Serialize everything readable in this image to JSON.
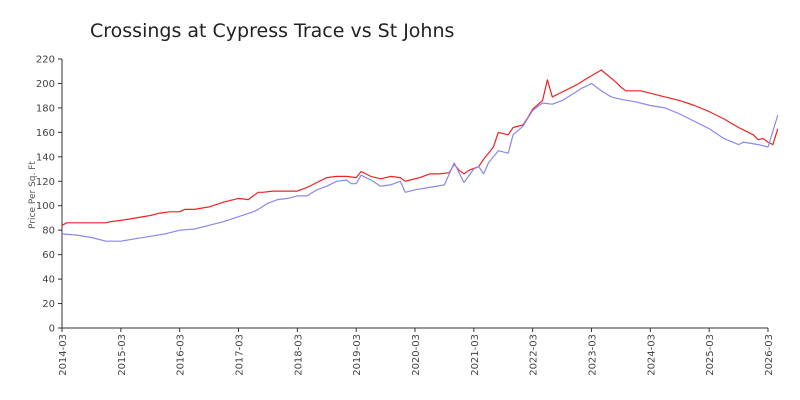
{
  "chart_data": {
    "type": "line",
    "title": "Crossings at Cypress Trace vs St  Johns",
    "ylabel": "Price Per Sq. Ft",
    "xlabel": "",
    "ylim": [
      0,
      220
    ],
    "yticks": [
      "0",
      "20",
      "40",
      "60",
      "80",
      "100",
      "120",
      "140",
      "160",
      "180",
      "200",
      "220"
    ],
    "xticks": [
      "2014-03",
      "2015-03",
      "2016-03",
      "2017-03",
      "2018-03",
      "2019-03",
      "2020-03",
      "2021-03",
      "2022-03",
      "2023-03",
      "2024-03",
      "2025-03",
      "2026-03"
    ],
    "grid": false,
    "series": [
      {
        "color": "#ee2222",
        "points": [
          [
            "2014-03",
            84
          ],
          [
            "2014-04",
            86
          ],
          [
            "2014-06",
            86
          ],
          [
            "2014-09",
            86
          ],
          [
            "2014-12",
            86
          ],
          [
            "2015-01",
            87
          ],
          [
            "2015-03",
            88
          ],
          [
            "2015-06",
            90
          ],
          [
            "2015-09",
            92
          ],
          [
            "2015-11",
            94
          ],
          [
            "2016-01",
            95
          ],
          [
            "2016-03",
            95
          ],
          [
            "2016-04",
            97
          ],
          [
            "2016-06",
            97
          ],
          [
            "2016-09",
            99
          ],
          [
            "2016-12",
            103
          ],
          [
            "2017-03",
            106
          ],
          [
            "2017-05",
            105
          ],
          [
            "2017-06",
            108
          ],
          [
            "2017-07",
            111
          ],
          [
            "2017-08",
            111
          ],
          [
            "2017-10",
            112
          ],
          [
            "2017-12",
            112
          ],
          [
            "2018-03",
            112
          ],
          [
            "2018-05",
            115
          ],
          [
            "2018-07",
            119
          ],
          [
            "2018-09",
            123
          ],
          [
            "2018-11",
            124
          ],
          [
            "2019-01",
            124
          ],
          [
            "2019-03",
            123
          ],
          [
            "2019-04",
            128
          ],
          [
            "2019-06",
            124
          ],
          [
            "2019-08",
            122
          ],
          [
            "2019-10",
            124
          ],
          [
            "2019-12",
            123
          ],
          [
            "2020-01",
            120
          ],
          [
            "2020-02",
            121
          ],
          [
            "2020-04",
            123
          ],
          [
            "2020-06",
            126
          ],
          [
            "2020-08",
            126
          ],
          [
            "2020-10",
            127
          ],
          [
            "2020-11",
            134
          ],
          [
            "2020-12",
            129
          ],
          [
            "2021-01",
            126
          ],
          [
            "2021-02",
            129
          ],
          [
            "2021-04",
            132
          ],
          [
            "2021-05",
            138
          ],
          [
            "2021-06",
            143
          ],
          [
            "2021-07",
            148
          ],
          [
            "2021-08",
            160
          ],
          [
            "2021-10",
            158
          ],
          [
            "2021-11",
            164
          ],
          [
            "2022-01",
            166
          ],
          [
            "2022-02",
            172
          ],
          [
            "2022-03",
            179
          ],
          [
            "2022-05",
            186
          ],
          [
            "2022-06",
            203
          ],
          [
            "2022-07",
            189
          ],
          [
            "2022-08",
            191
          ],
          [
            "2022-10",
            195
          ],
          [
            "2022-12",
            199
          ],
          [
            "2023-02",
            204
          ],
          [
            "2023-05",
            211
          ],
          [
            "2023-08",
            201
          ],
          [
            "2023-09",
            197
          ],
          [
            "2023-10",
            194
          ],
          [
            "2024-01",
            194
          ],
          [
            "2024-03",
            192
          ],
          [
            "2024-06",
            189
          ],
          [
            "2024-09",
            186
          ],
          [
            "2024-12",
            182
          ],
          [
            "2025-03",
            177
          ],
          [
            "2025-06",
            171
          ],
          [
            "2025-09",
            164
          ],
          [
            "2025-12",
            158
          ],
          [
            "2026-01",
            154
          ],
          [
            "2026-02",
            155
          ],
          [
            "2026-03",
            152
          ],
          [
            "2026-04",
            150
          ],
          [
            "2026-05",
            163
          ]
        ]
      },
      {
        "color": "#8888ee",
        "points": [
          [
            "2014-03",
            77
          ],
          [
            "2014-06",
            76
          ],
          [
            "2014-09",
            74
          ],
          [
            "2014-12",
            71
          ],
          [
            "2015-03",
            71
          ],
          [
            "2015-06",
            73
          ],
          [
            "2015-09",
            75
          ],
          [
            "2015-12",
            77
          ],
          [
            "2016-03",
            80
          ],
          [
            "2016-06",
            81
          ],
          [
            "2016-09",
            84
          ],
          [
            "2016-12",
            87
          ],
          [
            "2017-03",
            91
          ],
          [
            "2017-06",
            95
          ],
          [
            "2017-07",
            97
          ],
          [
            "2017-09",
            102
          ],
          [
            "2017-11",
            105
          ],
          [
            "2018-01",
            106
          ],
          [
            "2018-03",
            108
          ],
          [
            "2018-05",
            108
          ],
          [
            "2018-07",
            113
          ],
          [
            "2018-09",
            116
          ],
          [
            "2018-11",
            120
          ],
          [
            "2019-01",
            121
          ],
          [
            "2019-02",
            118
          ],
          [
            "2019-03",
            118
          ],
          [
            "2019-04",
            125
          ],
          [
            "2019-06",
            121
          ],
          [
            "2019-08",
            116
          ],
          [
            "2019-10",
            117
          ],
          [
            "2019-12",
            120
          ],
          [
            "2020-01",
            111
          ],
          [
            "2020-03",
            113
          ],
          [
            "2020-06",
            115
          ],
          [
            "2020-09",
            117
          ],
          [
            "2020-11",
            135
          ],
          [
            "2021-01",
            119
          ],
          [
            "2021-03",
            130
          ],
          [
            "2021-04",
            132
          ],
          [
            "2021-05",
            126
          ],
          [
            "2021-06",
            135
          ],
          [
            "2021-08",
            145
          ],
          [
            "2021-10",
            143
          ],
          [
            "2021-11",
            158
          ],
          [
            "2022-01",
            165
          ],
          [
            "2022-03",
            178
          ],
          [
            "2022-05",
            184
          ],
          [
            "2022-07",
            183
          ],
          [
            "2022-09",
            186
          ],
          [
            "2022-11",
            191
          ],
          [
            "2023-01",
            196
          ],
          [
            "2023-03",
            200
          ],
          [
            "2023-05",
            194
          ],
          [
            "2023-07",
            189
          ],
          [
            "2023-09",
            187
          ],
          [
            "2023-12",
            185
          ],
          [
            "2024-03",
            182
          ],
          [
            "2024-06",
            180
          ],
          [
            "2024-09",
            175
          ],
          [
            "2024-12",
            169
          ],
          [
            "2025-03",
            163
          ],
          [
            "2025-06",
            155
          ],
          [
            "2025-09",
            150
          ],
          [
            "2025-10",
            152
          ],
          [
            "2026-01",
            150
          ],
          [
            "2026-03",
            148
          ],
          [
            "2026-05",
            174
          ]
        ]
      }
    ]
  }
}
